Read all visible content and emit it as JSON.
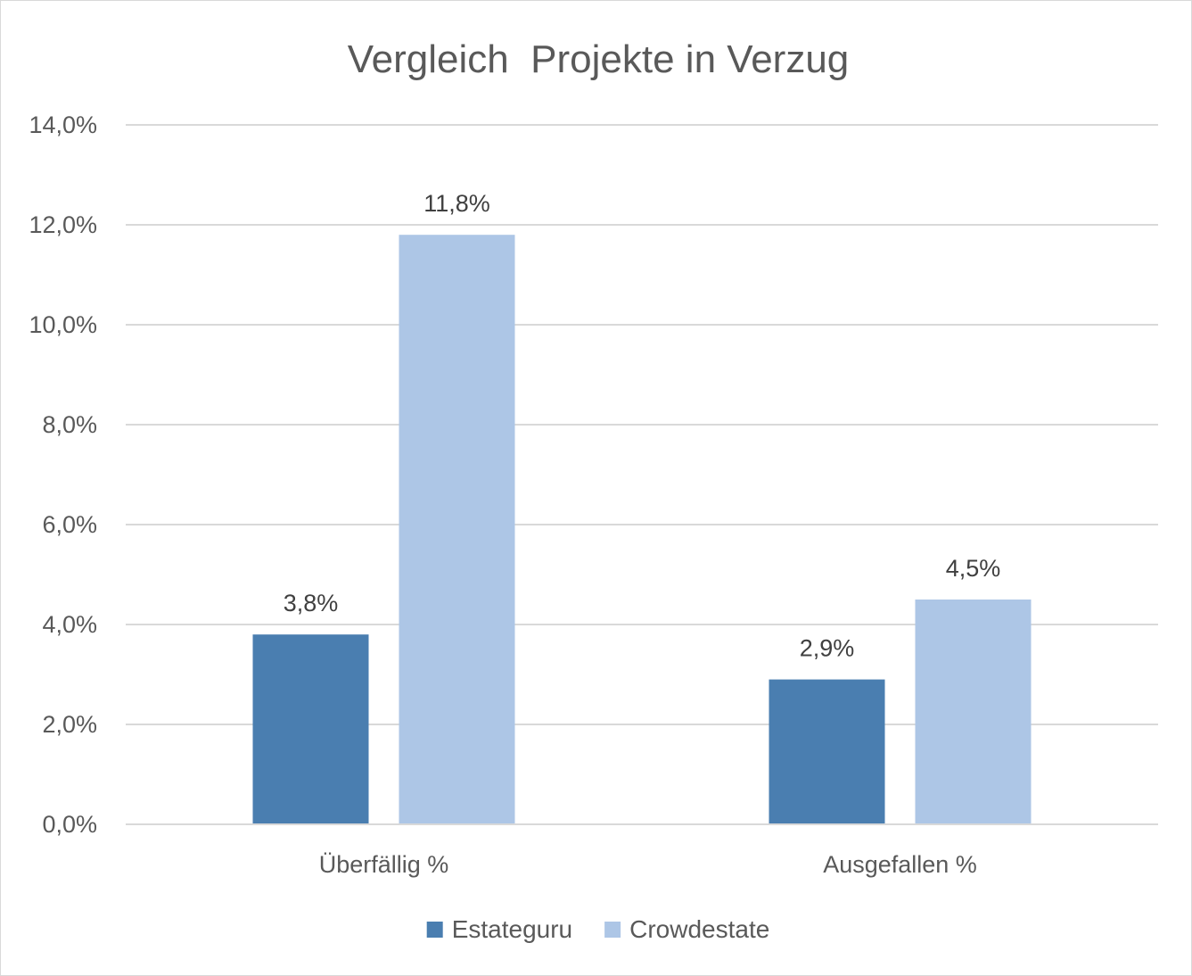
{
  "chart_data": {
    "type": "bar",
    "title": "Vergleich  Projekte in Verzug",
    "categories": [
      "Überfällig %",
      "Ausgefallen %"
    ],
    "series": [
      {
        "name": "Estateguru",
        "values": [
          3.8,
          2.9
        ],
        "labels": [
          "3,8%",
          "2,9%"
        ],
        "color": "#4a7eb0"
      },
      {
        "name": "Crowdestate",
        "values": [
          11.8,
          4.5
        ],
        "labels": [
          "11,8%",
          "4,5%"
        ],
        "color": "#adc6e6"
      }
    ],
    "ylim": [
      0,
      14
    ],
    "yticks": [
      0,
      2,
      4,
      6,
      8,
      10,
      12,
      14
    ],
    "ytick_labels": [
      "0,0%",
      "2,0%",
      "4,0%",
      "6,0%",
      "8,0%",
      "10,0%",
      "12,0%",
      "14,0%"
    ],
    "xlabel": "",
    "ylabel": "",
    "grid": true,
    "legend": "bottom",
    "colors": {
      "gridline": "#d9d9d9",
      "text": "#595959",
      "label": "#404040"
    }
  }
}
